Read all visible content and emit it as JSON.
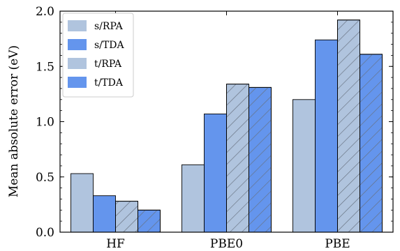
{
  "chart_data": {
    "type": "bar",
    "categories": [
      "HF",
      "PBE0",
      "PBE"
    ],
    "series": [
      {
        "name": "s/RPA",
        "values": [
          0.53,
          0.61,
          1.2
        ],
        "color": "#b0c4de",
        "hatch": false
      },
      {
        "name": "s/TDA",
        "values": [
          0.33,
          1.07,
          1.74
        ],
        "color": "#6495ed",
        "hatch": false
      },
      {
        "name": "t/RPA",
        "values": [
          0.28,
          1.34,
          1.92
        ],
        "color": "#b0c4de",
        "hatch": true
      },
      {
        "name": "t/TDA",
        "values": [
          0.2,
          1.31,
          1.61
        ],
        "color": "#6495ed",
        "hatch": true
      }
    ],
    "title": "",
    "xlabel": "",
    "ylabel": "Mean absolute error (eV)",
    "ylim": [
      0.0,
      2.0
    ],
    "yticks": [
      0.0,
      0.5,
      1.0,
      1.5,
      2.0
    ],
    "ytick_labels": [
      "0.0",
      "0.5",
      "1.0",
      "1.5",
      "2.0"
    ],
    "legend_position": "top-left",
    "grid": false
  }
}
